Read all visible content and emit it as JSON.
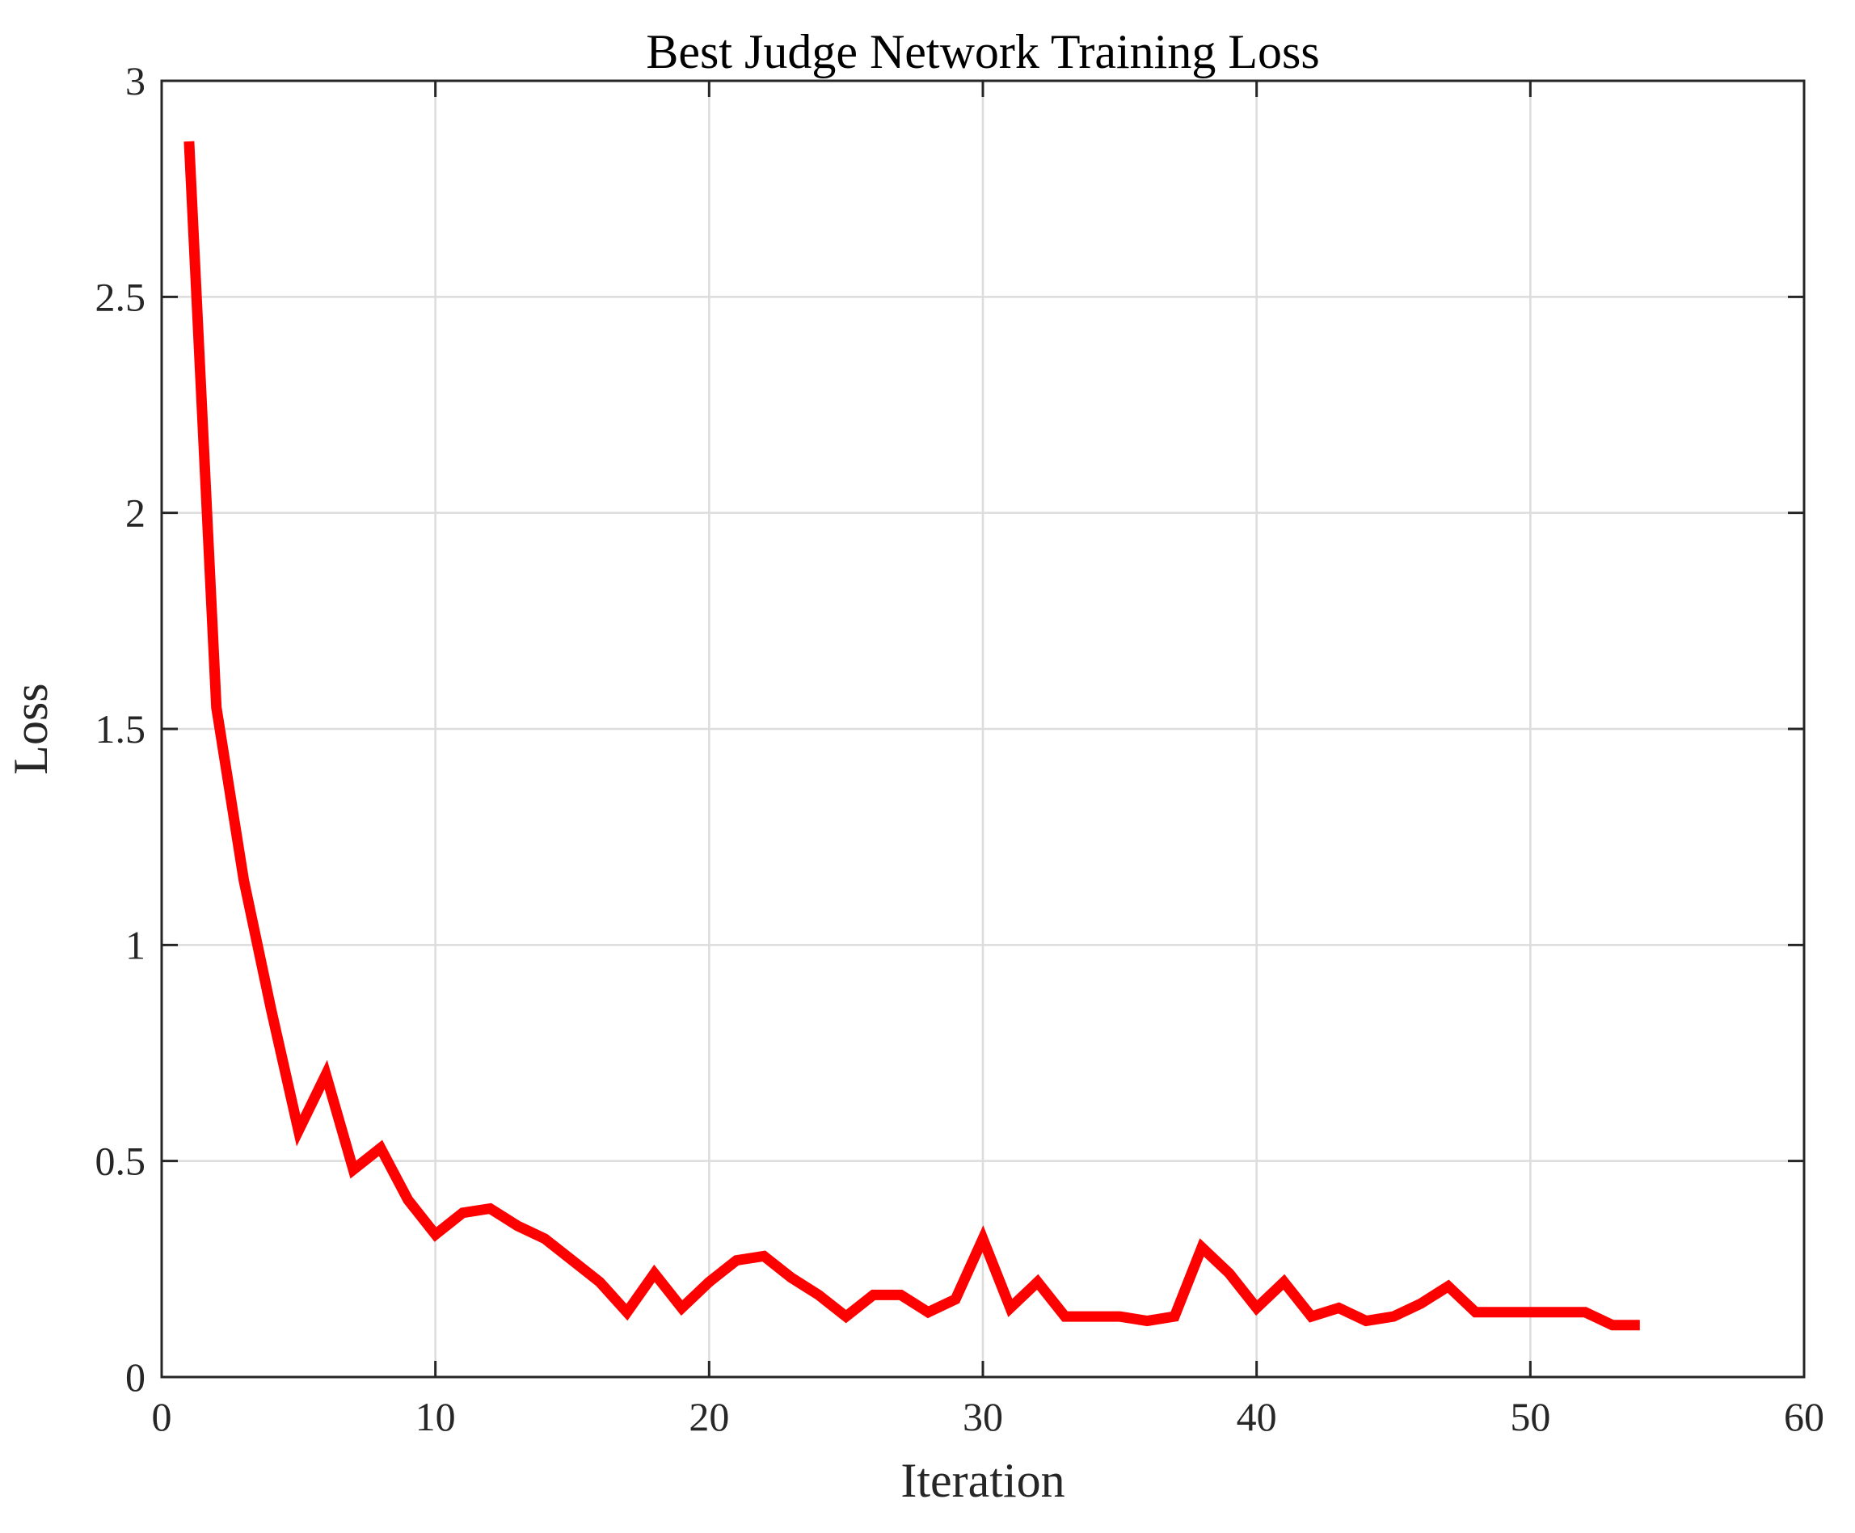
{
  "chart_data": {
    "type": "line",
    "title": "Best Judge Network Training Loss",
    "xlabel": "Iteration",
    "ylabel": "Loss",
    "xlim": [
      0,
      60
    ],
    "ylim": [
      0,
      3
    ],
    "xticks": [
      0,
      10,
      20,
      30,
      40,
      50,
      60
    ],
    "yticks": [
      0,
      0.5,
      1,
      1.5,
      2,
      2.5,
      3
    ],
    "xtick_labels": [
      "0",
      "10",
      "20",
      "30",
      "40",
      "50",
      "60"
    ],
    "ytick_labels": [
      "0",
      "0.5",
      "1",
      "1.5",
      "2",
      "2.5",
      "3"
    ],
    "grid": true,
    "series": [
      {
        "color": "#ff0000",
        "x": [
          1,
          2,
          3,
          4,
          5,
          6,
          7,
          8,
          9,
          10,
          11,
          12,
          13,
          14,
          15,
          16,
          17,
          18,
          19,
          20,
          21,
          22,
          23,
          24,
          25,
          26,
          27,
          28,
          29,
          30,
          31,
          32,
          33,
          34,
          35,
          36,
          37,
          38,
          39,
          40,
          41,
          42,
          43,
          44,
          45,
          46,
          47,
          48,
          49,
          50,
          51,
          52,
          53,
          54
        ],
        "y": [
          2.86,
          1.55,
          1.15,
          0.85,
          0.57,
          0.7,
          0.48,
          0.53,
          0.41,
          0.33,
          0.38,
          0.39,
          0.35,
          0.32,
          0.27,
          0.22,
          0.15,
          0.24,
          0.16,
          0.22,
          0.27,
          0.28,
          0.23,
          0.19,
          0.14,
          0.19,
          0.19,
          0.15,
          0.18,
          0.32,
          0.16,
          0.22,
          0.14,
          0.14,
          0.14,
          0.13,
          0.14,
          0.3,
          0.24,
          0.16,
          0.22,
          0.14,
          0.16,
          0.13,
          0.14,
          0.17,
          0.21,
          0.15,
          0.15,
          0.15,
          0.15,
          0.15,
          0.12,
          0.12
        ]
      }
    ]
  }
}
